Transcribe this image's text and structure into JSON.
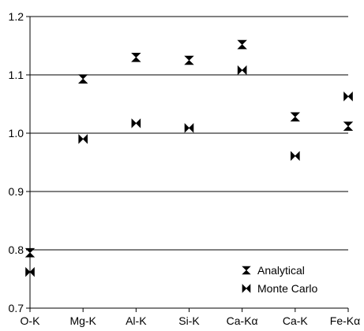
{
  "chart_data": {
    "type": "scatter",
    "categories": [
      "O-K",
      "Mg-K",
      "Al-K",
      "Si-K",
      "Ca-Kα",
      "Ca-K",
      "Fe-Kα"
    ],
    "series": [
      {
        "name": "Analytical",
        "marker": "hourglass",
        "values": [
          0.795,
          1.093,
          1.13,
          1.125,
          1.152,
          1.028,
          1.012
        ]
      },
      {
        "name": "Monte Carlo",
        "marker": "bowtie",
        "values": [
          0.762,
          0.99,
          1.017,
          1.009,
          1.108,
          0.961,
          1.063
        ]
      }
    ],
    "yticks": [
      "0.7",
      "0.8",
      "0.9",
      "1.0",
      "1.1",
      "1.2"
    ],
    "ylim": [
      0.7,
      1.2
    ],
    "grid": "horizontal",
    "legend": "bottom-right",
    "title": "",
    "xlabel": "",
    "ylabel": ""
  },
  "colors": {
    "axis": "#000000",
    "grid": "#000000",
    "marker": "#000000"
  }
}
